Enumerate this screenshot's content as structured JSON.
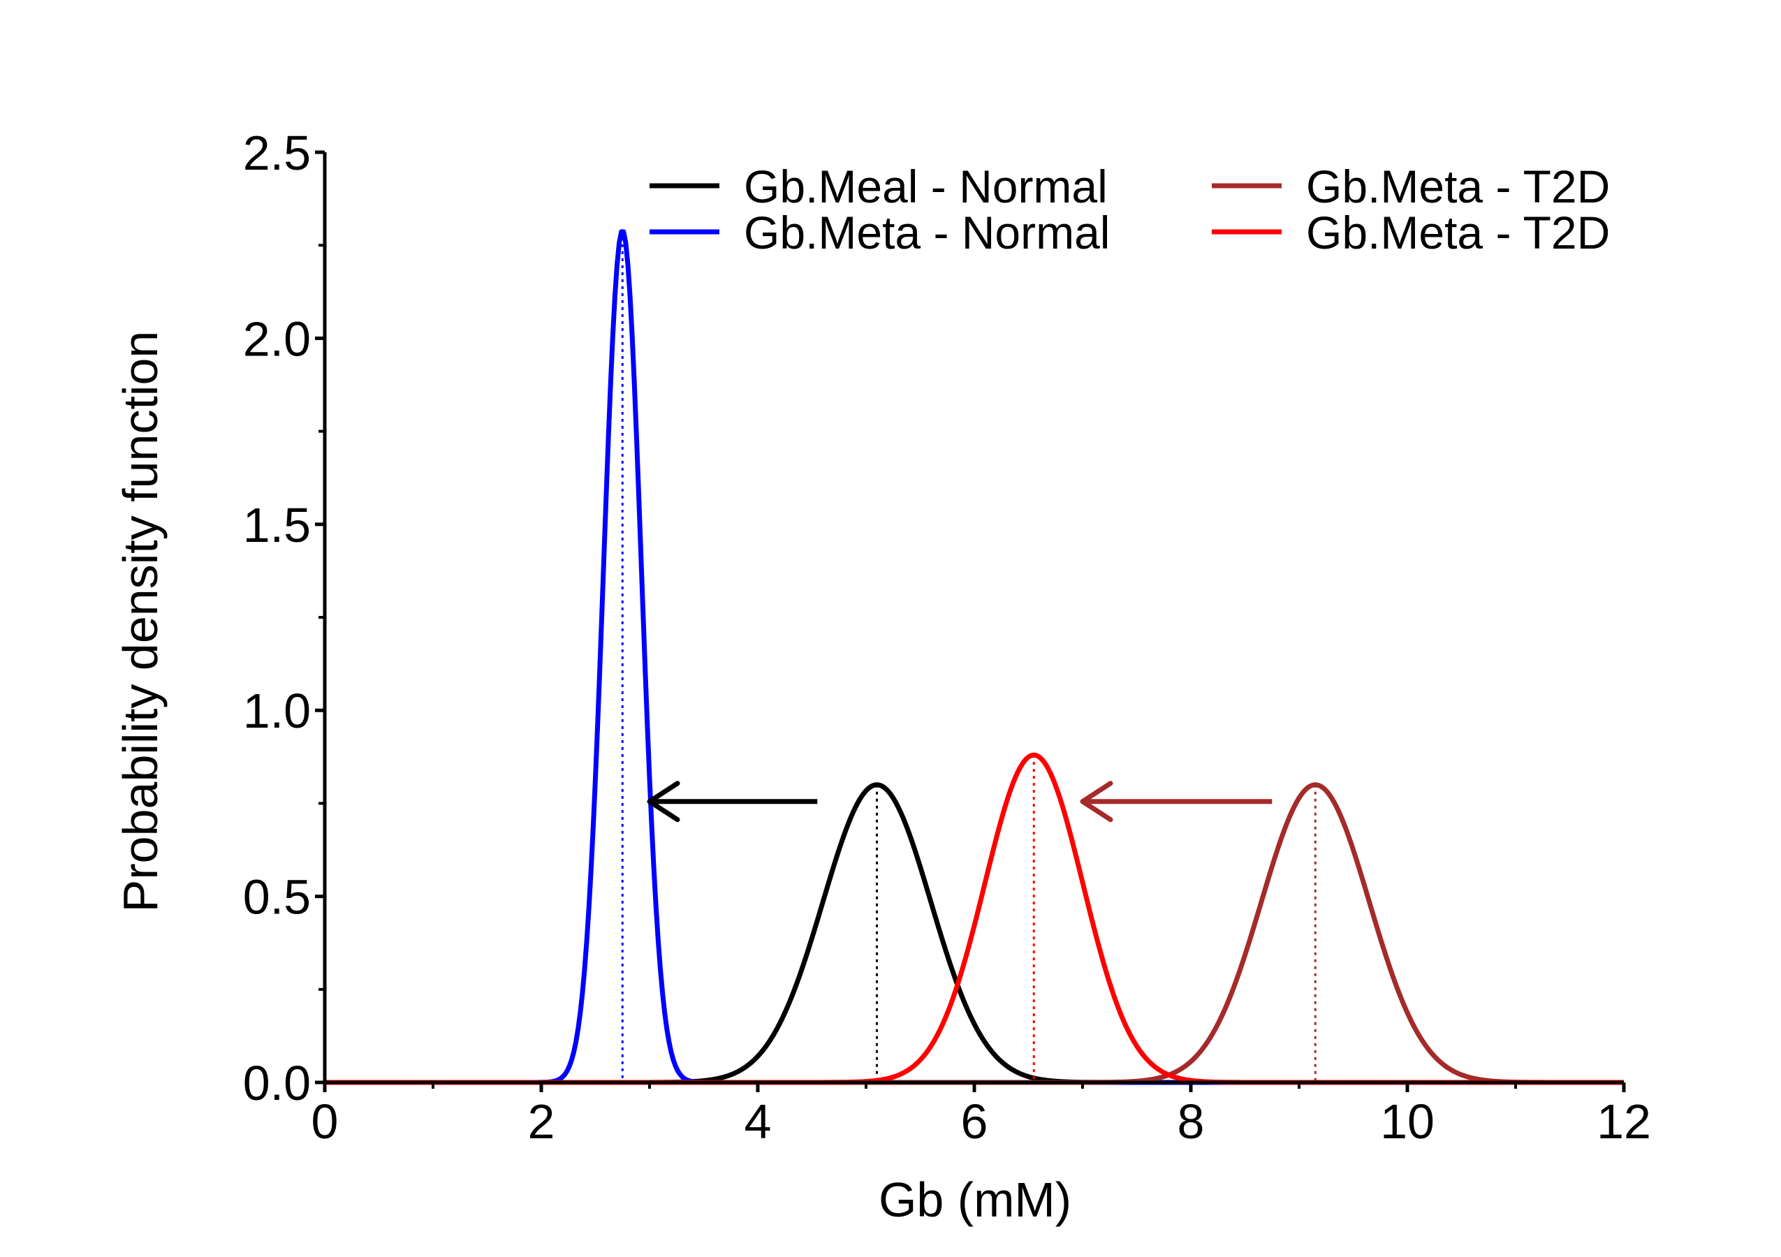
{
  "chart_data": {
    "type": "line",
    "title": "",
    "xlabel": "Gb (mM)",
    "ylabel": "Probability density function",
    "xlim": [
      0,
      12
    ],
    "ylim": [
      0,
      2.5
    ],
    "x_ticks": [
      0,
      2,
      4,
      6,
      8,
      10,
      12
    ],
    "x_tick_labels": [
      "0",
      "2",
      "4",
      "6",
      "8",
      "10",
      "12"
    ],
    "y_ticks": [
      0,
      0.5,
      1.0,
      1.5,
      2.0,
      2.5
    ],
    "y_tick_labels": [
      "0.0",
      "0.5",
      "1.0",
      "1.5",
      "2.0",
      "2.5"
    ],
    "grid": false,
    "legend_position": "top-right",
    "series": [
      {
        "name": "Gb.Meal - Normal",
        "distribution": "normal",
        "mean": 5.1,
        "peak": 0.8,
        "color": "#000000",
        "mean_marker": true
      },
      {
        "name": "Gb.Meta - Normal",
        "distribution": "normal",
        "mean": 2.75,
        "peak": 2.29,
        "color": "#0000ff",
        "mean_marker": true
      },
      {
        "name": "Gb.Meta - T2D",
        "distribution": "normal",
        "mean": 9.15,
        "peak": 0.8,
        "color": "#a52a2a",
        "mean_marker": true
      },
      {
        "name": "Gb.Meta - T2D",
        "distribution": "normal",
        "mean": 6.55,
        "peak": 0.88,
        "color": "#ff0000",
        "mean_marker": true
      }
    ],
    "annotations": [
      {
        "type": "arrow",
        "from": [
          4.55,
          0.755
        ],
        "to": [
          3.0,
          0.755
        ],
        "color": "#000000"
      },
      {
        "type": "arrow",
        "from": [
          8.75,
          0.755
        ],
        "to": [
          7.0,
          0.755
        ],
        "color": "#a52a2a"
      }
    ]
  }
}
